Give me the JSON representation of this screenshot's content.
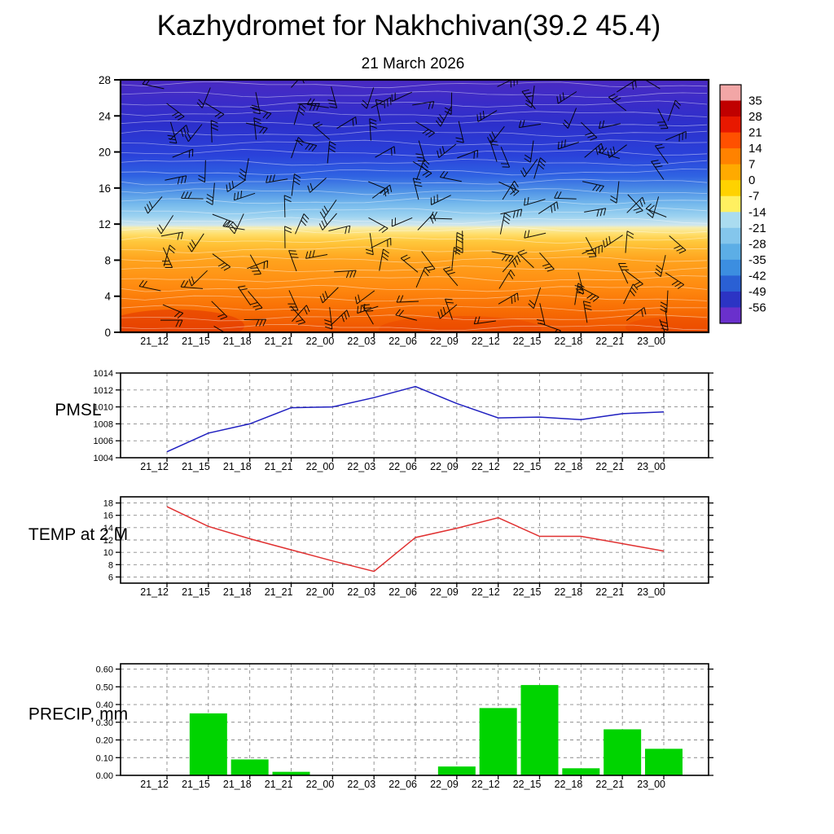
{
  "title": "Kazhydromet for Nakhchivan(39.2 45.4)",
  "subtitle": "21 March 2026",
  "time_labels": [
    "21_12",
    "21_15",
    "21_18",
    "21_21",
    "22_00",
    "22_03",
    "22_06",
    "22_09",
    "22_12",
    "22_15",
    "22_18",
    "22_21",
    "23_00"
  ],
  "chart_data": [
    {
      "type": "heatmap",
      "name": "vertical-cross-section",
      "ylabel": "",
      "ylim": [
        0,
        28
      ],
      "y_ticks": [
        0,
        4,
        8,
        12,
        16,
        20,
        24,
        28
      ],
      "y_tick_labels": [
        "0",
        "4",
        "8",
        "12",
        "16",
        "20",
        "24",
        "28"
      ],
      "fill_gradient_top_to_bottom": [
        {
          "offset": 0,
          "color": "#4a2ac2"
        },
        {
          "offset": 8,
          "color": "#3c2cc8"
        },
        {
          "offset": 18,
          "color": "#2c30cc"
        },
        {
          "offset": 30,
          "color": "#2a42da"
        },
        {
          "offset": 38,
          "color": "#2f62e2"
        },
        {
          "offset": 44,
          "color": "#4f92e6"
        },
        {
          "offset": 49,
          "color": "#74b8ec"
        },
        {
          "offset": 54,
          "color": "#9cd2f0"
        },
        {
          "offset": 57.5,
          "color": "#cfe6ee"
        },
        {
          "offset": 58.5,
          "color": "#f6eeb0"
        },
        {
          "offset": 61,
          "color": "#ffdf6e"
        },
        {
          "offset": 64,
          "color": "#ffc83c"
        },
        {
          "offset": 71,
          "color": "#ffa41e"
        },
        {
          "offset": 82,
          "color": "#ff8a10"
        },
        {
          "offset": 91,
          "color": "#f86e04"
        },
        {
          "offset": 100,
          "color": "#ee5200"
        }
      ],
      "overlays": {
        "wind_barbs_color": "#000000",
        "contour_lines_color": "#ffffff"
      },
      "colorbar": {
        "labels": [
          "35",
          "28",
          "21",
          "14",
          "7",
          "0",
          "-7",
          "-14",
          "-21",
          "-28",
          "-35",
          "-42",
          "-49",
          "-56"
        ],
        "colors_top_to_bottom": [
          "#f2a6a6",
          "#c00000",
          "#e81800",
          "#ff5000",
          "#ff8200",
          "#ffaa00",
          "#ffd200",
          "#fff060",
          "#aadcf0",
          "#84c6ec",
          "#5caee6",
          "#3c8ee0",
          "#2a60d4",
          "#2c34c4",
          "#6a30cc"
        ]
      }
    },
    {
      "type": "line",
      "name": "pmsl",
      "ylabel": "PMSL",
      "color": "#2020c0",
      "ylim": [
        1004,
        1014
      ],
      "y_ticks": [
        1004,
        1006,
        1008,
        1010,
        1012,
        1014
      ],
      "y_tick_labels": [
        "1004",
        "1006",
        "1008",
        "1010",
        "1012",
        "1014"
      ],
      "values": [
        1004.7,
        1006.9,
        1008.0,
        1009.9,
        1010.0,
        1011.1,
        1012.4,
        1010.4,
        1008.7,
        1008.8,
        1008.5,
        1009.2,
        1009.4
      ]
    },
    {
      "type": "line",
      "name": "temp-2m",
      "ylabel": "TEMP at 2 M",
      "color": "#e03030",
      "ylim": [
        5,
        19
      ],
      "y_ticks": [
        6,
        8,
        10,
        12,
        14,
        16,
        18
      ],
      "y_tick_labels": [
        "6",
        "8",
        "10",
        "12",
        "14",
        "16",
        "18"
      ],
      "values": [
        17.4,
        14.2,
        12.2,
        10.4,
        8.6,
        6.9,
        12.4,
        13.9,
        15.6,
        12.6,
        12.6,
        11.4,
        10.2
      ]
    },
    {
      "type": "bar",
      "name": "precip",
      "ylabel": "PRECIP, mm",
      "color": "#00d400",
      "ylim": [
        0,
        0.63
      ],
      "y_ticks": [
        0,
        0.1,
        0.2,
        0.3,
        0.4,
        0.5,
        0.6
      ],
      "y_tick_labels": [
        "0.00",
        "0.10",
        "0.20",
        "0.30",
        "0.40",
        "0.50",
        "0.60"
      ],
      "values": [
        0,
        0.35,
        0.09,
        0.02,
        0,
        0,
        0,
        0.05,
        0.38,
        0.51,
        0.04,
        0.26,
        0.15
      ]
    }
  ]
}
